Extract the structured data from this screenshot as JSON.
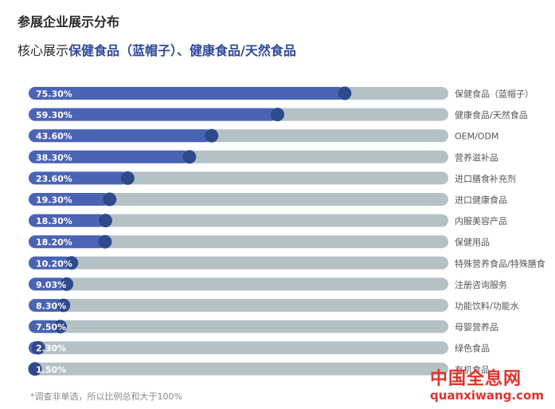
{
  "header": {
    "title": "参展企业展示分布",
    "subtitle_prefix": "核心展示",
    "subtitle_highlight": "保健食品（蓝帽子）、健康食品/天然食品"
  },
  "chart_data": {
    "type": "bar",
    "orientation": "horizontal",
    "categories": [
      "保健食品（蓝帽子）",
      "健康食品/天然食品",
      "OEM/ODM",
      "营养滋补品",
      "进口膳食补充剂",
      "进口健康食品",
      "内服美容产品",
      "保健用品",
      "特殊营养食品/特殊膳食",
      "注册咨询服务",
      "功能饮料/功能水",
      "母婴营养品",
      "绿色食品",
      "有机食品"
    ],
    "values": [
      75.3,
      59.3,
      43.6,
      38.3,
      23.6,
      19.3,
      18.3,
      18.2,
      10.2,
      9.03,
      8.3,
      7.5,
      2.3,
      1.5
    ],
    "value_labels": [
      "75.30%",
      "59.30%",
      "43.60%",
      "38.30%",
      "23.60%",
      "19.30%",
      "18.30%",
      "18.20%",
      "10.20%",
      "9.03%",
      "8.30%",
      "7.50%",
      "2.30%",
      "1.50%"
    ],
    "xlim": [
      0,
      100
    ],
    "colors": {
      "fill": "#4a63b5",
      "track": "#b4c2c5",
      "knob": "#2f4a8c",
      "label": "#ffffff"
    }
  },
  "footnote": "*调查非单选，所以比例总和大于100%",
  "watermark": {
    "line1": "中国全息网",
    "line2": "quanxiwang.com"
  }
}
